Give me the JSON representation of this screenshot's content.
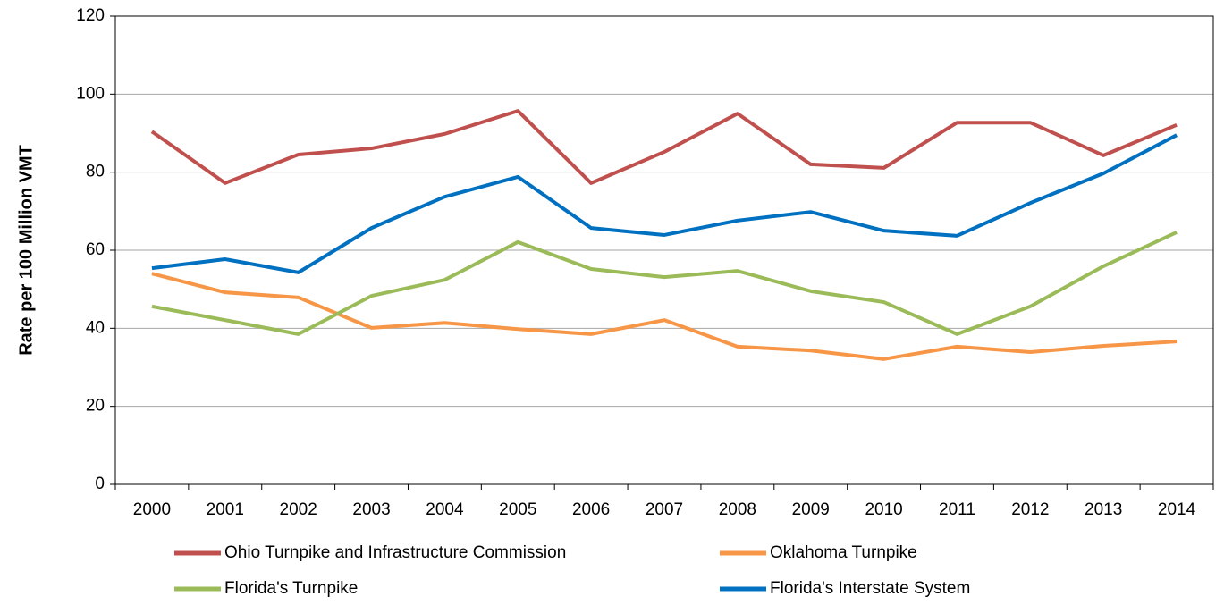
{
  "chart_data": {
    "type": "line",
    "y_label": "Rate per 100 Million VMT",
    "categories": [
      "2000",
      "2001",
      "2002",
      "2003",
      "2004",
      "2005",
      "2006",
      "2007",
      "2008",
      "2009",
      "2010",
      "2011",
      "2012",
      "2013",
      "2014"
    ],
    "series": [
      {
        "name": "Ohio Turnpike and Infrastructure Commission",
        "color": "#c0504d",
        "values": [
          90.4,
          77.2,
          84.5,
          86.1,
          89.8,
          95.7,
          77.2,
          85.2,
          95.0,
          82.0,
          81.1,
          92.7,
          92.7,
          84.3,
          92.1
        ]
      },
      {
        "name": "Oklahoma Turnpike",
        "color": "#f79646",
        "values": [
          54.0,
          49.2,
          47.9,
          40.1,
          41.4,
          39.8,
          38.5,
          42.1,
          35.3,
          34.3,
          32.1,
          35.3,
          33.9,
          35.5,
          36.6
        ]
      },
      {
        "name": "Florida's Turnpike",
        "color": "#9bbb59",
        "values": [
          45.6,
          42.1,
          38.5,
          48.3,
          52.4,
          62.1,
          55.2,
          53.1,
          54.7,
          49.5,
          46.7,
          38.5,
          45.6,
          55.9,
          64.6
        ]
      },
      {
        "name": "Florida's Interstate System",
        "color": "#0070c0",
        "values": [
          55.4,
          57.7,
          54.3,
          65.7,
          73.7,
          78.8,
          65.7,
          63.9,
          67.6,
          69.8,
          65.0,
          63.7,
          72.1,
          79.7,
          89.5
        ]
      }
    ],
    "ylim": [
      0,
      120
    ],
    "yticks": [
      0,
      20,
      40,
      60,
      80,
      100,
      120
    ],
    "grid": true
  }
}
